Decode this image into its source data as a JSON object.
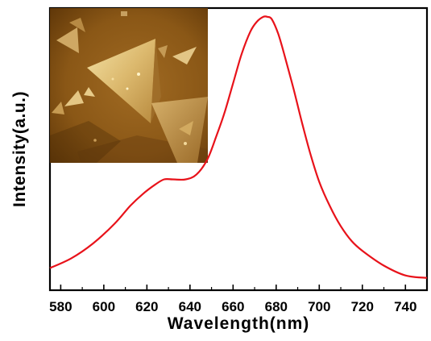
{
  "chart_data": {
    "type": "line",
    "xlabel": "Wavelength(nm)",
    "ylabel": "Intensity(a.u.)",
    "xlim": [
      575,
      750
    ],
    "ylim": [
      0,
      1.1
    ],
    "x_ticks": [
      580,
      600,
      620,
      640,
      660,
      680,
      700,
      720,
      740
    ],
    "y_ticks_labeled": false,
    "grid": false,
    "legend": "none",
    "inset": "AFM image of triangular flakes",
    "series": [
      {
        "color": "#e8121a",
        "x": [
          575,
          585,
          595,
          605,
          612,
          618,
          624,
          628,
          632,
          638,
          643,
          648,
          652,
          656,
          660,
          664,
          668,
          671,
          674,
          676,
          678,
          681,
          684,
          688,
          692,
          696,
          700,
          705,
          710,
          715,
          720,
          730,
          740,
          750
        ],
        "y": [
          0.09,
          0.13,
          0.19,
          0.27,
          0.34,
          0.39,
          0.43,
          0.45,
          0.45,
          0.45,
          0.47,
          0.53,
          0.62,
          0.72,
          0.84,
          0.96,
          1.05,
          1.09,
          1.11,
          1.11,
          1.1,
          1.04,
          0.95,
          0.82,
          0.68,
          0.55,
          0.44,
          0.34,
          0.26,
          0.2,
          0.16,
          0.1,
          0.06,
          0.05
        ]
      }
    ]
  }
}
